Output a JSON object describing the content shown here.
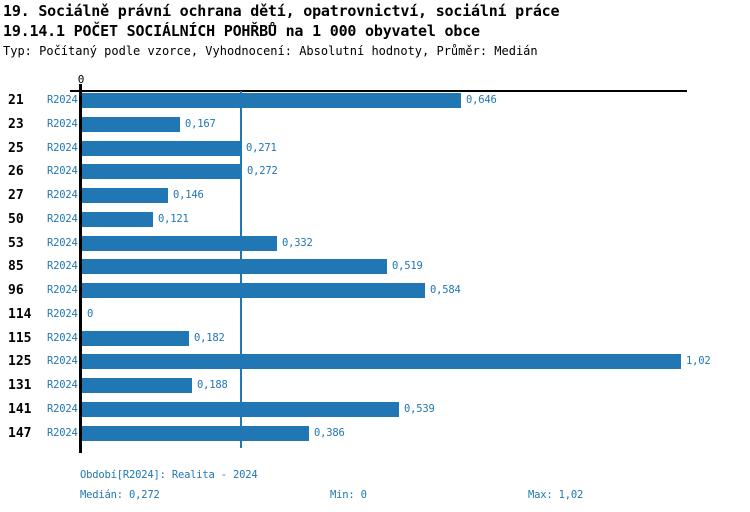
{
  "title_line1": "19. Sociálně právní ochrana dětí, opatrovnictví, sociální práce",
  "title_line2": "19.14.1 POČET SOCIÁLNÍCH POHŘBŮ na 1 000 obyvatel obce",
  "meta_line": "Typ: Počítaný podle vzorce, Vyhodnocení: Absolutní hodnoty, Průměr: Medián",
  "colors": {
    "accent_blue": "#2177b4",
    "axis_black": "#000000",
    "background": "#ffffff"
  },
  "chart_data": {
    "type": "bar",
    "orientation": "horizontal",
    "title": "19.14.1 POČET SOCIÁLNÍCH POHŘBŮ na 1 000 obyvatel obce",
    "series_label": "R2024",
    "axis_origin_label": "0",
    "categories": [
      "21",
      "23",
      "25",
      "26",
      "27",
      "50",
      "53",
      "85",
      "96",
      "114",
      "115",
      "125",
      "131",
      "141",
      "147"
    ],
    "values": [
      0.646,
      0.167,
      0.271,
      0.272,
      0.146,
      0.121,
      0.332,
      0.519,
      0.584,
      0,
      0.182,
      1.02,
      0.188,
      0.539,
      0.386
    ],
    "value_labels": [
      "0,646",
      "0,167",
      "0,271",
      "0,272",
      "0,146",
      "0,121",
      "0,332",
      "0,519",
      "0,584",
      "0",
      "0,182",
      "1,02",
      "0,188",
      "0,539",
      "0,386"
    ],
    "xlim": [
      0,
      1.02
    ],
    "median_line_value": 0.272,
    "grid": "single vertical median gridline",
    "legend_position": "none",
    "bar_color": "#2177b4"
  },
  "footer": {
    "period_label": "Období[R2024]: Realita - 2024",
    "median_label": "Medián: 0,272",
    "min_label": "Min: 0",
    "max_label": "Max: 1,02"
  }
}
